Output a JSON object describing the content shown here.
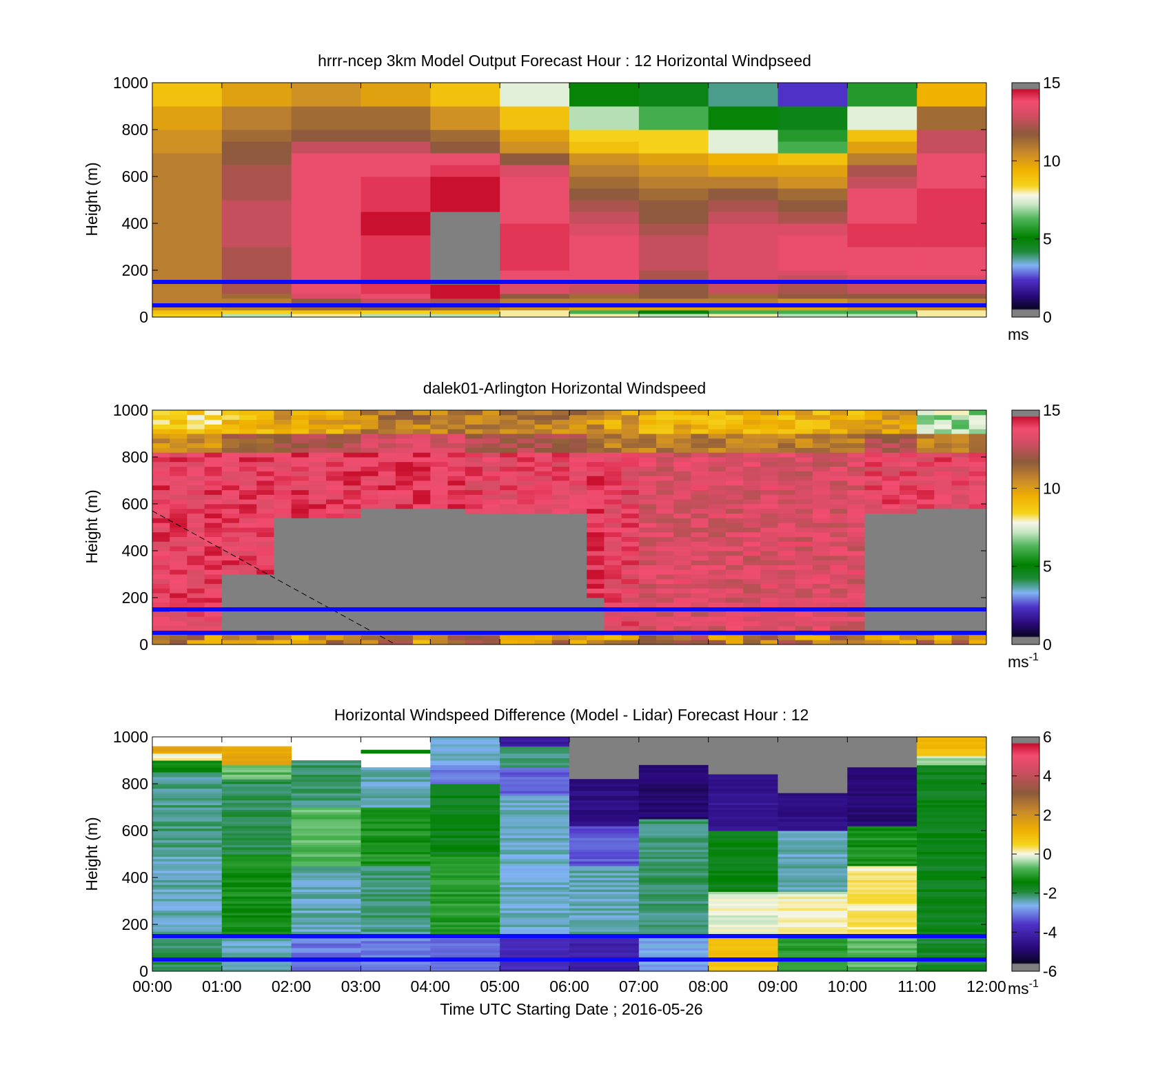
{
  "figure": {
    "xlabel": "Time UTC  Starting Date ; 2016-05-26"
  },
  "chart_data": [
    {
      "type": "heatmap",
      "id": "model",
      "title": "hrrr-ncep 3km Model Output   Forecast Hour : 12 Horizontal Windpseed",
      "ylabel": "Height (m)",
      "ylim": [
        0,
        1000
      ],
      "yticks": [
        "0",
        "200",
        "400",
        "600",
        "800",
        "1000"
      ],
      "xlim": [
        0,
        12
      ],
      "x_tick_labels": [],
      "colorbar": {
        "min": 0,
        "max": 15,
        "ticks": [
          "0",
          "5",
          "10",
          "15"
        ],
        "unit": "ms",
        "unit_sup": "",
        "palette": "speed"
      },
      "reference_lines_m": [
        50,
        150
      ],
      "no_data_color": "#808080",
      "x_edges": [
        0,
        1,
        2,
        3,
        4,
        5,
        6,
        7,
        8,
        9,
        10,
        11,
        12
      ],
      "y_edges": [
        0,
        15,
        30,
        55,
        80,
        100,
        140,
        180,
        200,
        300,
        350,
        400,
        450,
        500,
        550,
        600,
        650,
        700,
        750,
        800,
        900,
        1000
      ],
      "values": [
        [
          8.5,
          7,
          8,
          7,
          7,
          8,
          8,
          7,
          8,
          7,
          7,
          8
        ],
        [
          9,
          8.5,
          9,
          8.5,
          9,
          8,
          6,
          5,
          6,
          6,
          6,
          8
        ],
        [
          10.5,
          11,
          11.5,
          12,
          11.5,
          10.5,
          10,
          10,
          10,
          10,
          10.5,
          10.5
        ],
        [
          11,
          11,
          12,
          13,
          12.5,
          11,
          11,
          11,
          11,
          10.5,
          11,
          11
        ],
        [
          11,
          11.5,
          13.5,
          14,
          15,
          12,
          11.5,
          12,
          11.5,
          12,
          12,
          12
        ],
        [
          11,
          12.5,
          14,
          14.5,
          15,
          13.5,
          13,
          12,
          13,
          12.5,
          13,
          13
        ],
        [
          11,
          12.5,
          14,
          14.5,
          null,
          14,
          14,
          12.5,
          13.5,
          13,
          13.5,
          13.5
        ],
        [
          11,
          12.5,
          14,
          14.5,
          null,
          14,
          14,
          12.5,
          13.5,
          13.5,
          14,
          14
        ],
        [
          11,
          12.5,
          14,
          14.5,
          null,
          14.5,
          14,
          13,
          13.5,
          14,
          14,
          14
        ],
        [
          11,
          13,
          14,
          14.5,
          null,
          14.5,
          14,
          13,
          13.5,
          14,
          14.5,
          14.5
        ],
        [
          11,
          13,
          14,
          15,
          null,
          14.5,
          13.5,
          12.5,
          13.5,
          13.5,
          14.5,
          14.5
        ],
        [
          11,
          13,
          14,
          15,
          null,
          14,
          13,
          12,
          13,
          12.5,
          14,
          14.5
        ],
        [
          11,
          13,
          14,
          14.5,
          15,
          14,
          12.5,
          12,
          12.5,
          12,
          14,
          14.5
        ],
        [
          11,
          12.5,
          14,
          14.5,
          15,
          14,
          12,
          11.5,
          12,
          11.5,
          14,
          14.5
        ],
        [
          11,
          12.5,
          14,
          14.5,
          15,
          14,
          11.5,
          11,
          11,
          10.5,
          13,
          14
        ],
        [
          11,
          12.5,
          14,
          14,
          14.5,
          13.5,
          11,
          10.5,
          10,
          10,
          12.5,
          14
        ],
        [
          11,
          12,
          14,
          14,
          14,
          12,
          10.5,
          10,
          9.5,
          9,
          11,
          14
        ],
        [
          10.5,
          12,
          13,
          13,
          12,
          10.5,
          9,
          8.5,
          7.5,
          6,
          10,
          13
        ],
        [
          10.5,
          11.5,
          12,
          12,
          11.5,
          10,
          8.5,
          8.5,
          7.5,
          5.5,
          9,
          13
        ],
        [
          10,
          11,
          11.5,
          11.5,
          10.5,
          9,
          7,
          6,
          5,
          4.5,
          7.5,
          11.5
        ],
        [
          9,
          10,
          10.5,
          10,
          9,
          7.5,
          5,
          4.5,
          3.5,
          2,
          5.5,
          9.5
        ]
      ]
    },
    {
      "type": "heatmap",
      "id": "lidar",
      "title": "dalek01-Arlington  Horizontal Windspeed",
      "ylabel": "Height (m)",
      "ylim": [
        0,
        1000
      ],
      "yticks": [
        "0",
        "200",
        "400",
        "600",
        "800",
        "1000"
      ],
      "xlim": [
        0,
        12
      ],
      "x_tick_labels": [],
      "colorbar": {
        "min": 0,
        "max": 15,
        "ticks": [
          "0",
          "5",
          "10",
          "15"
        ],
        "unit": "ms",
        "unit_sup": "-1",
        "palette": "speed"
      },
      "reference_lines_m": [
        50,
        150
      ],
      "no_data_color": "#808080",
      "column_width_h": 0.25,
      "column_count": 48,
      "column_profiles": [
        {
          "upto": 4,
          "gray_low": null,
          "gray_high": null,
          "core": 14.2,
          "upper": 10.5,
          "top": 8.5
        },
        {
          "upto": 7,
          "gray_low": 30,
          "gray_high": 300,
          "core": 14.2,
          "upper": 12,
          "top": 9
        },
        {
          "upto": 12,
          "gray_low": 30,
          "gray_high": 540,
          "core": 14.3,
          "upper": 12.5,
          "top": 10
        },
        {
          "upto": 18,
          "gray_low": 30,
          "gray_high": 580,
          "core": 14.5,
          "upper": 13.5,
          "top": 11
        },
        {
          "upto": 25,
          "gray_low": 30,
          "gray_high": 560,
          "core": 14,
          "upper": 12.5,
          "top": 11
        },
        {
          "upto": 26,
          "gray_low": 50,
          "gray_high": 200,
          "core": 14.5,
          "upper": 11.5,
          "top": 10.5
        },
        {
          "upto": 28,
          "gray_low": null,
          "gray_high": null,
          "core": 14,
          "upper": 11,
          "top": 10
        },
        {
          "upto": 41,
          "gray_low": null,
          "gray_high": null,
          "core": 13.5,
          "upper": 11,
          "top": 9.5
        },
        {
          "upto": 44,
          "gray_low": 50,
          "gray_high": 560,
          "core": 14,
          "upper": 12.5,
          "top": 10
        },
        {
          "upto": 48,
          "gray_low": 60,
          "gray_high": 570,
          "core": 14,
          "upper": 11,
          "top": 7
        }
      ],
      "diagonal_line": {
        "from": [
          0,
          570
        ],
        "to": [
          3.5,
          0
        ]
      }
    },
    {
      "type": "heatmap",
      "id": "difference",
      "title": "Horizontal Windspeed Difference (Model - Lidar) Forecast Hour : 12",
      "ylabel": "Height (m)",
      "ylim": [
        0,
        1000
      ],
      "yticks": [
        "0",
        "200",
        "400",
        "600",
        "800",
        "1000"
      ],
      "xlim": [
        0,
        12
      ],
      "x_tick_labels": [
        "00:00",
        "01:00",
        "02:00",
        "03:00",
        "04:00",
        "05:00",
        "06:00",
        "07:00",
        "08:00",
        "09:00",
        "10:00",
        "11:00",
        "12:00"
      ],
      "colorbar": {
        "min": -6,
        "max": 6,
        "ticks": [
          "-6",
          "-4",
          "-2",
          "0",
          "2",
          "4",
          "6"
        ],
        "unit": "ms",
        "unit_sup": "-1",
        "palette": "diff"
      },
      "reference_lines_m": [
        50,
        150
      ],
      "no_data_color": "#808080",
      "x_edges": [
        0,
        1,
        2,
        3,
        4,
        5,
        6,
        7,
        8,
        9,
        10,
        11,
        12
      ],
      "column_segments": [
        [
          [
            0,
            150,
            -2.2
          ],
          [
            150,
            500,
            -2.6
          ],
          [
            500,
            850,
            -2.4
          ],
          [
            850,
            900,
            -1.5
          ],
          [
            900,
            930,
            0.1
          ],
          [
            930,
            960,
            1.5
          ]
        ],
        [
          [
            0,
            150,
            -2.6
          ],
          [
            150,
            500,
            -1.4
          ],
          [
            500,
            820,
            -2.2
          ],
          [
            820,
            880,
            -0.8
          ],
          [
            880,
            960,
            1.5
          ]
        ],
        [
          [
            0,
            160,
            -3.3
          ],
          [
            160,
            450,
            -2.6
          ],
          [
            450,
            700,
            -0.8
          ],
          [
            700,
            900,
            -2.3
          ]
        ],
        [
          [
            0,
            160,
            -3.3
          ],
          [
            160,
            450,
            -2.4
          ],
          [
            450,
            700,
            -1.3
          ],
          [
            700,
            870,
            -2.6
          ],
          [
            930,
            945,
            -1.6
          ]
        ],
        [
          [
            0,
            160,
            -3.4
          ],
          [
            160,
            500,
            -1.2
          ],
          [
            500,
            800,
            -1.8
          ],
          [
            800,
            880,
            -3.4
          ],
          [
            880,
            1000,
            -2.7
          ]
        ],
        [
          [
            0,
            160,
            -4.2
          ],
          [
            160,
            750,
            -2.7
          ],
          [
            750,
            870,
            -3.5
          ],
          [
            870,
            960,
            -2.3
          ],
          [
            960,
            1000,
            -4.6
          ]
        ],
        [
          [
            0,
            160,
            -4.4
          ],
          [
            160,
            450,
            -2.6
          ],
          [
            450,
            620,
            -3.6
          ],
          [
            620,
            820,
            -5
          ]
        ],
        [
          [
            0,
            160,
            -3
          ],
          [
            160,
            650,
            -2.3
          ],
          [
            650,
            880,
            -5.3
          ]
        ],
        [
          [
            0,
            160,
            0.9
          ],
          [
            160,
            320,
            -0.1
          ],
          [
            320,
            340,
            -0.3
          ],
          [
            340,
            600,
            -1.7
          ],
          [
            600,
            840,
            -4.8
          ]
        ],
        [
          [
            0,
            160,
            -1.2
          ],
          [
            160,
            320,
            0.1
          ],
          [
            320,
            340,
            -0.3
          ],
          [
            340,
            600,
            -2.6
          ],
          [
            600,
            760,
            -5
          ]
        ],
        [
          [
            0,
            160,
            -0.8
          ],
          [
            160,
            450,
            0.2
          ],
          [
            450,
            620,
            -1.3
          ],
          [
            620,
            870,
            -5.2
          ]
        ],
        [
          [
            0,
            160,
            -2
          ],
          [
            160,
            880,
            -1.8
          ],
          [
            880,
            920,
            -0.4
          ],
          [
            920,
            1000,
            1
          ]
        ]
      ],
      "column_gray_top": [
        null,
        null,
        null,
        null,
        null,
        null,
        820,
        880,
        840,
        760,
        870,
        null
      ]
    }
  ]
}
